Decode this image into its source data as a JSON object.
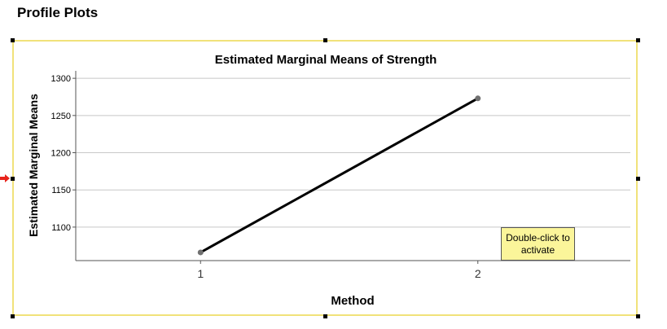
{
  "section_title": "Profile Plots",
  "tooltip": {
    "text": "Double-click to activate"
  },
  "colors": {
    "frame_border": "#f1e27a",
    "tooltip_background": "#fbf59a",
    "grid": "#c8c8c8",
    "line": "#000000",
    "marker": "#707070",
    "pointer_arrow": "#e8231b"
  },
  "chart_data": {
    "type": "line",
    "title": "Estimated Marginal Means of Strength",
    "xlabel": "Method",
    "ylabel": "Estimated Marginal Means",
    "categories": [
      "1",
      "2"
    ],
    "series": [
      {
        "values": [
          1066,
          1273
        ]
      }
    ],
    "ylim": [
      1055,
      1310
    ],
    "yticks": [
      1100,
      1150,
      1200,
      1250,
      1300
    ],
    "grid": true
  }
}
